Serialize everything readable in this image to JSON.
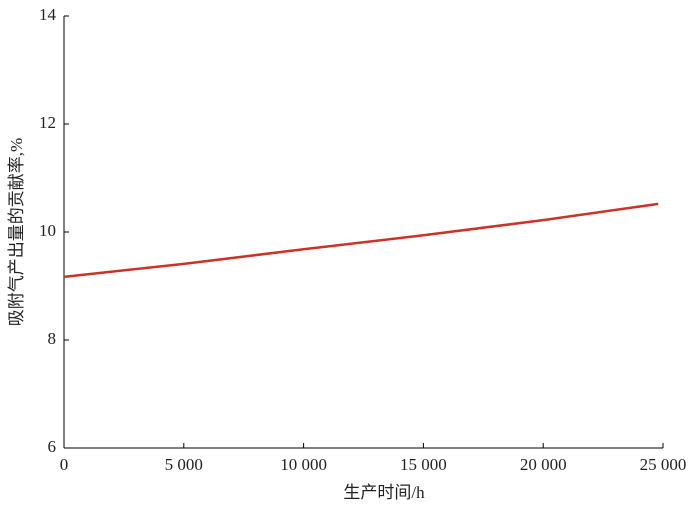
{
  "chart_data": {
    "type": "line",
    "x_label": "生产时间/h",
    "y_label": "吸附气产出量的贡献率,%",
    "x": [
      0,
      5000,
      10000,
      15000,
      20000,
      24800
    ],
    "series": [
      {
        "name": "吸附气产出量的贡献率",
        "color": "#cc3328",
        "values": [
          9.17,
          9.41,
          9.68,
          9.94,
          10.22,
          10.52
        ]
      }
    ],
    "xlim": [
      0,
      25000
    ],
    "xticks": [
      0,
      {
        "value": 5000,
        "label": "5 000"
      },
      {
        "value": 10000,
        "label": "10 000"
      },
      {
        "value": 15000,
        "label": "15 000"
      },
      {
        "value": 20000,
        "label": "20 000"
      },
      {
        "value": 25000,
        "label": "25 000"
      }
    ],
    "ylim": [
      6,
      14
    ],
    "yticks": [
      6,
      8,
      10,
      12,
      14
    ]
  }
}
